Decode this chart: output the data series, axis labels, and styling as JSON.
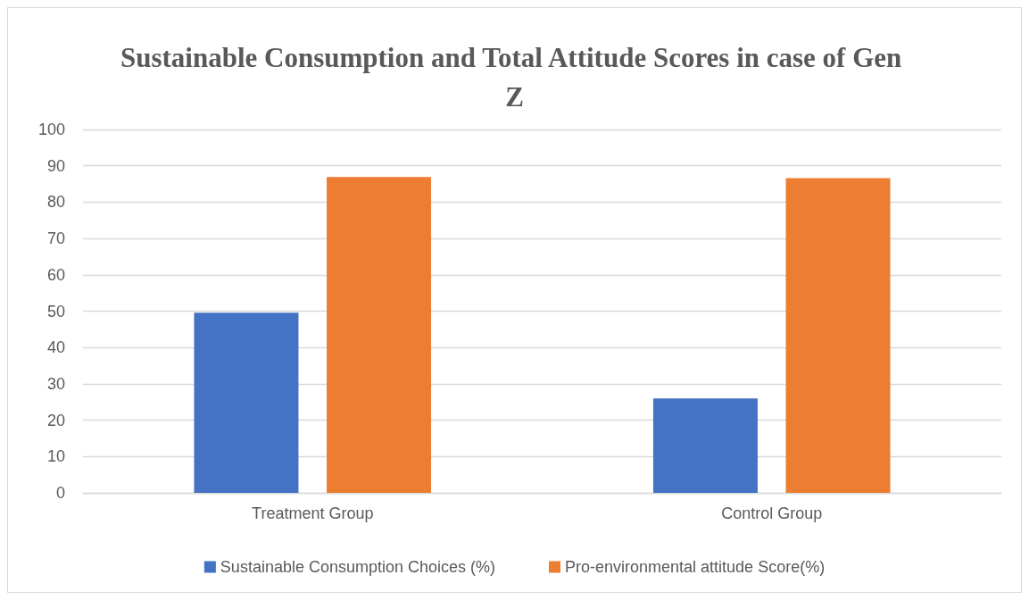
{
  "chart_data": {
    "type": "bar",
    "title": "Sustainable Consumption and Total Attitude Scores in case of Gen Z",
    "categories": [
      "Treatment Group",
      "Control Group"
    ],
    "series": [
      {
        "name": "Sustainable Consumption Choices (%)",
        "color": "#4472c4",
        "values": [
          49.6,
          26.0
        ]
      },
      {
        "name": "Pro-environmental attitude Score(%)",
        "color": "#ed7d31",
        "values": [
          86.9,
          86.6
        ]
      }
    ],
    "ylim": [
      0,
      100
    ],
    "yticks": [
      0,
      10,
      20,
      30,
      40,
      50,
      60,
      70,
      80,
      90,
      100
    ],
    "grid": "y",
    "legend": "bottom"
  }
}
